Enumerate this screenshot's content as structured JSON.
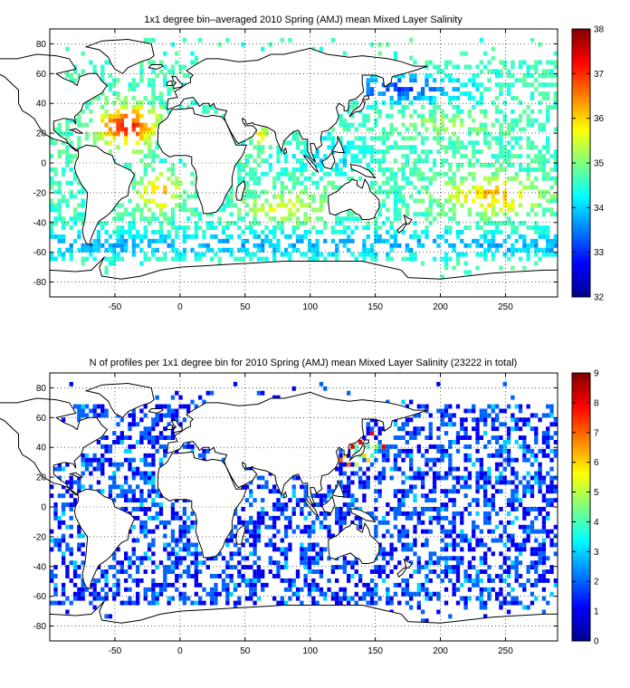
{
  "chart_data": [
    {
      "type": "heatmap",
      "title": "1x1 degree bin–averaged 2010 Spring (AMJ) mean Mixed Layer Salinity",
      "xlabel": "",
      "ylabel": "",
      "xlim": [
        -100,
        290
      ],
      "ylim": [
        -90,
        90
      ],
      "x_ticks": [
        -50,
        0,
        50,
        100,
        150,
        200,
        250
      ],
      "y_ticks": [
        -80,
        -60,
        -40,
        -20,
        0,
        20,
        40,
        60,
        80
      ],
      "grid": true,
      "colormap": "jet",
      "colorbar": {
        "min": 32,
        "max": 38,
        "ticks": [
          32,
          33,
          34,
          35,
          36,
          37,
          38
        ]
      },
      "features": {
        "subtropical_north_atlantic_max": 37.2,
        "subtropical_south_atlantic": 36.5,
        "arabian_sea": 36.3,
        "subtropical_south_pacific": 36.0,
        "subtropical_south_indian": 35.6,
        "subtropical_north_pacific": 35.0,
        "equatorial_band": 34.8,
        "northwest_pacific_high_lat": 33.0,
        "southern_ocean": 34.0,
        "antarctic_margin": 33.8
      }
    },
    {
      "type": "heatmap",
      "title": "N of profiles per 1x1 degree bin for 2010 Spring (AMJ) mean Mixed Layer Salinity  (23222 in total)",
      "xlabel": "",
      "ylabel": "",
      "xlim": [
        -100,
        290
      ],
      "ylim": [
        -90,
        90
      ],
      "x_ticks": [
        -50,
        0,
        50,
        100,
        150,
        200,
        250
      ],
      "y_ticks": [
        -80,
        -60,
        -40,
        -20,
        0,
        20,
        40,
        60,
        80
      ],
      "grid": true,
      "colormap": "jet",
      "colorbar": {
        "min": 0,
        "max": 9,
        "ticks": [
          0,
          1,
          2,
          3,
          4,
          5,
          6,
          7,
          8,
          9
        ]
      },
      "total_profiles": 23222,
      "typical_count_per_bin": 1,
      "hotspots": {
        "kuroshio_extension": 8,
        "north_pacific": 4,
        "southern_ocean": 2
      }
    }
  ]
}
